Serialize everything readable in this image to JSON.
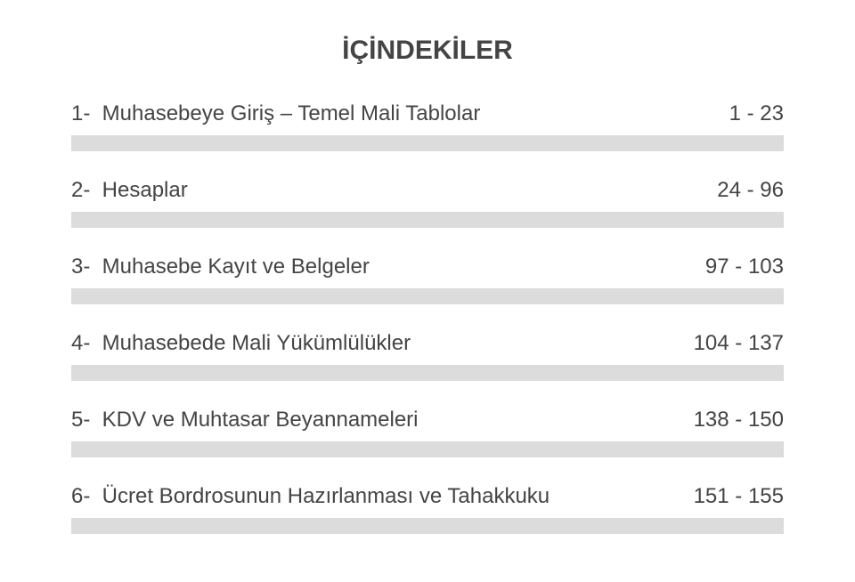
{
  "title": {
    "text": "İÇİNDEKİLER",
    "fontsize": 30,
    "weight": "bold",
    "color": "#444444"
  },
  "toc": {
    "font_size": 24,
    "text_color": "#444444",
    "shade_color": "#dcdcdc",
    "shade_height": 18,
    "row_gap": 30,
    "items": [
      {
        "num": "1-",
        "label": "Muhasebeye Giriş – Temel Mali Tablolar",
        "pages": "1 - 23"
      },
      {
        "num": "2-",
        "label": "Hesaplar",
        "pages": "24 - 96"
      },
      {
        "num": "3-",
        "label": "Muhasebe Kayıt ve Belgeler",
        "pages": "97 - 103"
      },
      {
        "num": "4-",
        "label": "Muhasebede Mali Yükümlülükler",
        "pages": "104 - 137"
      },
      {
        "num": "5-",
        "label": "KDV ve Muhtasar Beyannameleri",
        "pages": "138 - 150"
      },
      {
        "num": "6-",
        "label": "Ücret Bordrosunun Hazırlanması ve Tahakkuku",
        "pages": "151 - 155"
      }
    ]
  }
}
